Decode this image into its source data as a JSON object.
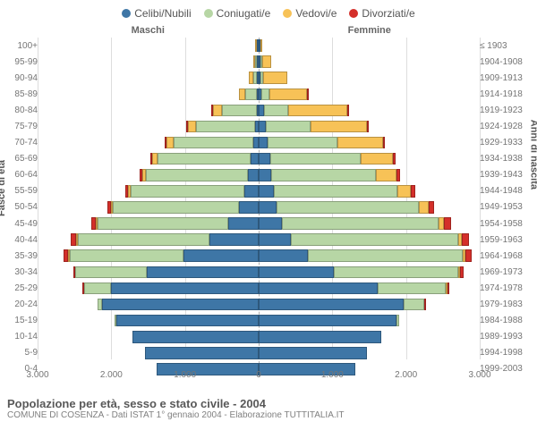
{
  "legend": {
    "items": [
      {
        "label": "Celibi/Nubili",
        "color": "#3e76a6"
      },
      {
        "label": "Coniugati/e",
        "color": "#b7d6a5"
      },
      {
        "label": "Vedovi/e",
        "color": "#f7c257"
      },
      {
        "label": "Divorziati/e",
        "color": "#d42f2a"
      }
    ]
  },
  "headers": {
    "male": "Maschi",
    "female": "Femmine"
  },
  "axes": {
    "left_label": "Fasce di età",
    "right_label": "Anni di nascita",
    "x_ticks": [
      3000,
      2000,
      1000,
      0,
      1000,
      2000,
      3000
    ],
    "x_tick_labels": [
      "3.000",
      "2.000",
      "1.000",
      "0",
      "1.000",
      "2.000",
      "3.000"
    ],
    "xmax": 3000,
    "grid_color": "#dddddd",
    "center_color": "#b0b0b0"
  },
  "footer": {
    "title": "Popolazione per età, sesso e stato civile - 2004",
    "sub": "COMUNE DI COSENZA - Dati ISTAT 1° gennaio 2004 - Elaborazione TUTTITALIA.IT"
  },
  "segments": [
    "single",
    "married",
    "widowed",
    "divorced"
  ],
  "segment_colors": {
    "single": "#3e76a6",
    "married": "#b7d6a5",
    "widowed": "#f7c257",
    "divorced": "#d42f2a"
  },
  "bar_border": "rgba(0,0,0,0.25)",
  "background": "#ffffff",
  "rows": [
    {
      "age": "100+",
      "birth": "≤ 1903",
      "m": {
        "single": 5,
        "married": 0,
        "widowed": 10,
        "divorced": 0
      },
      "f": {
        "single": 5,
        "married": 0,
        "widowed": 30,
        "divorced": 0
      }
    },
    {
      "age": "95-99",
      "birth": "1904-1908",
      "m": {
        "single": 5,
        "married": 10,
        "widowed": 25,
        "divorced": 0
      },
      "f": {
        "single": 10,
        "married": 10,
        "widowed": 120,
        "divorced": 0
      }
    },
    {
      "age": "90-94",
      "birth": "1909-1913",
      "m": {
        "single": 10,
        "married": 50,
        "widowed": 60,
        "divorced": 0
      },
      "f": {
        "single": 20,
        "married": 40,
        "widowed": 330,
        "divorced": 0
      }
    },
    {
      "age": "85-89",
      "birth": "1914-1918",
      "m": {
        "single": 15,
        "married": 160,
        "widowed": 90,
        "divorced": 0
      },
      "f": {
        "single": 40,
        "married": 110,
        "widowed": 520,
        "divorced": 5
      }
    },
    {
      "age": "80-84",
      "birth": "1919-1923",
      "m": {
        "single": 30,
        "married": 480,
        "widowed": 130,
        "divorced": 5
      },
      "f": {
        "single": 80,
        "married": 330,
        "widowed": 820,
        "divorced": 10
      }
    },
    {
      "age": "75-79",
      "birth": "1924-1928",
      "m": {
        "single": 50,
        "married": 820,
        "widowed": 120,
        "divorced": 10
      },
      "f": {
        "single": 100,
        "married": 620,
        "widowed": 790,
        "divorced": 15
      }
    },
    {
      "age": "70-74",
      "birth": "1929-1933",
      "m": {
        "single": 80,
        "married": 1100,
        "widowed": 100,
        "divorced": 15
      },
      "f": {
        "single": 130,
        "married": 960,
        "widowed": 640,
        "divorced": 25
      }
    },
    {
      "age": "65-69",
      "birth": "1934-1938",
      "m": {
        "single": 110,
        "married": 1300,
        "widowed": 70,
        "divorced": 25
      },
      "f": {
        "single": 160,
        "married": 1260,
        "widowed": 450,
        "divorced": 40
      }
    },
    {
      "age": "60-64",
      "birth": "1939-1943",
      "m": {
        "single": 150,
        "married": 1420,
        "widowed": 50,
        "divorced": 30
      },
      "f": {
        "single": 180,
        "married": 1450,
        "widowed": 290,
        "divorced": 45
      }
    },
    {
      "age": "55-59",
      "birth": "1944-1948",
      "m": {
        "single": 200,
        "married": 1580,
        "widowed": 35,
        "divorced": 40
      },
      "f": {
        "single": 210,
        "married": 1720,
        "widowed": 190,
        "divorced": 60
      }
    },
    {
      "age": "50-54",
      "birth": "1949-1953",
      "m": {
        "single": 280,
        "married": 1750,
        "widowed": 25,
        "divorced": 55
      },
      "f": {
        "single": 250,
        "married": 1980,
        "widowed": 130,
        "divorced": 80
      }
    },
    {
      "age": "45-49",
      "birth": "1954-1958",
      "m": {
        "single": 420,
        "married": 1820,
        "widowed": 15,
        "divorced": 65
      },
      "f": {
        "single": 320,
        "married": 2180,
        "widowed": 80,
        "divorced": 100
      }
    },
    {
      "age": "40-44",
      "birth": "1959-1963",
      "m": {
        "single": 680,
        "married": 1840,
        "widowed": 10,
        "divorced": 70
      },
      "f": {
        "single": 450,
        "married": 2320,
        "widowed": 50,
        "divorced": 110
      }
    },
    {
      "age": "35-39",
      "birth": "1964-1968",
      "m": {
        "single": 1050,
        "married": 1580,
        "widowed": 5,
        "divorced": 55
      },
      "f": {
        "single": 680,
        "married": 2160,
        "widowed": 30,
        "divorced": 90
      }
    },
    {
      "age": "30-34",
      "birth": "1969-1973",
      "m": {
        "single": 1550,
        "married": 1000,
        "widowed": 0,
        "divorced": 30
      },
      "f": {
        "single": 1050,
        "married": 1720,
        "widowed": 15,
        "divorced": 55
      }
    },
    {
      "age": "25-29",
      "birth": "1974-1978",
      "m": {
        "single": 2050,
        "married": 380,
        "widowed": 0,
        "divorced": 10
      },
      "f": {
        "single": 1650,
        "married": 950,
        "widowed": 5,
        "divorced": 25
      }
    },
    {
      "age": "20-24",
      "birth": "1979-1983",
      "m": {
        "single": 2180,
        "married": 60,
        "widowed": 0,
        "divorced": 0
      },
      "f": {
        "single": 2020,
        "married": 280,
        "widowed": 0,
        "divorced": 5
      }
    },
    {
      "age": "15-19",
      "birth": "1984-1988",
      "m": {
        "single": 1980,
        "married": 5,
        "widowed": 0,
        "divorced": 0
      },
      "f": {
        "single": 1920,
        "married": 30,
        "widowed": 0,
        "divorced": 0
      }
    },
    {
      "age": "10-14",
      "birth": "1989-1993",
      "m": {
        "single": 1760,
        "married": 0,
        "widowed": 0,
        "divorced": 0
      },
      "f": {
        "single": 1700,
        "married": 0,
        "widowed": 0,
        "divorced": 0
      }
    },
    {
      "age": "5-9",
      "birth": "1994-1998",
      "m": {
        "single": 1580,
        "married": 0,
        "widowed": 0,
        "divorced": 0
      },
      "f": {
        "single": 1500,
        "married": 0,
        "widowed": 0,
        "divorced": 0
      }
    },
    {
      "age": "0-4",
      "birth": "1999-2003",
      "m": {
        "single": 1420,
        "married": 0,
        "widowed": 0,
        "divorced": 0
      },
      "f": {
        "single": 1350,
        "married": 0,
        "widowed": 0,
        "divorced": 0
      }
    }
  ]
}
